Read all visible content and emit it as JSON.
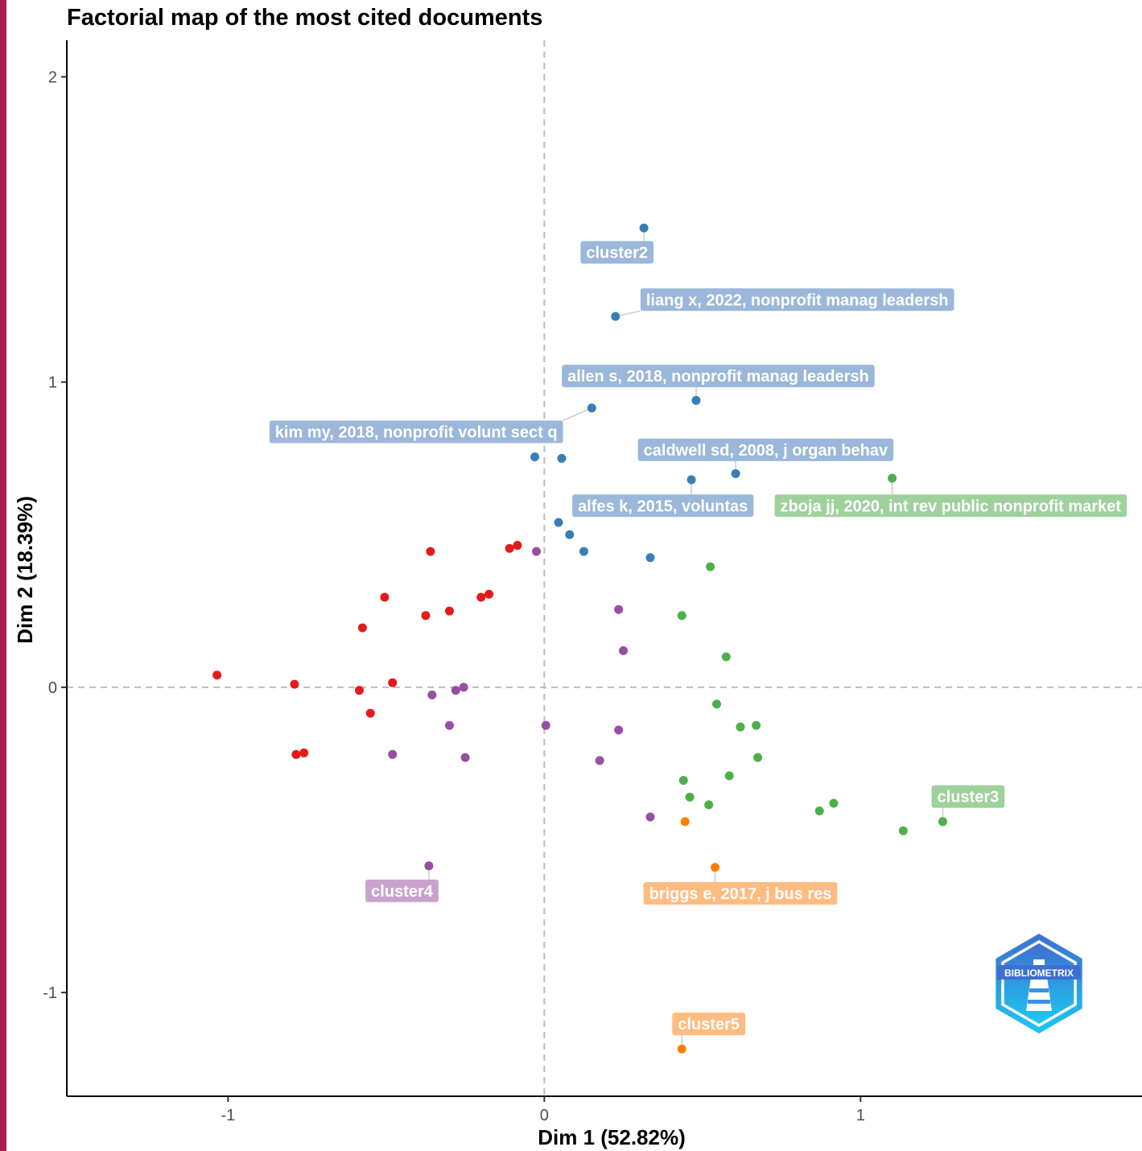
{
  "theme": {
    "accent_bar": "#a8224e",
    "cluster_colors": {
      "1": "#e41a1c",
      "2": "#377eb8",
      "3": "#4daf4a",
      "4": "#984ea3",
      "5": "#ff7f00"
    },
    "label_colors": {
      "1": "#f3a0a0",
      "2": "#9bb7d9",
      "3": "#9fd19d",
      "4": "#c9a3cd",
      "5": "#ffbb80"
    }
  },
  "logo": {
    "text": "BIBLIOMETRIX",
    "icon": "bibliometrix-lighthouse-icon"
  },
  "chart_data": {
    "type": "scatter",
    "title": "Factorial map of the most cited documents",
    "xlabel": "Dim 1 (52.82%)",
    "ylabel": "Dim 2 (18.39%)",
    "xlim": [
      -1.51,
      1.89
    ],
    "ylim": [
      -1.34,
      2.12
    ],
    "xticks": [
      -1,
      0,
      1
    ],
    "yticks": [
      -1,
      0,
      1,
      2
    ],
    "xtick_labels": [
      "-1",
      "0",
      "1"
    ],
    "ytick_labels": [
      "-1",
      "0",
      "1",
      "2"
    ],
    "reference_lines": {
      "x": 0,
      "y": 0,
      "style": "dashed"
    },
    "grid": false,
    "legend": "none",
    "series": [
      {
        "cluster": "1",
        "points": [
          [
            -1.035,
            0.04
          ],
          [
            -0.79,
            0.01
          ],
          [
            -0.785,
            -0.22
          ],
          [
            -0.76,
            -0.215
          ],
          [
            -0.585,
            -0.01
          ],
          [
            -0.575,
            0.195
          ],
          [
            -0.55,
            -0.085
          ],
          [
            -0.505,
            0.295
          ],
          [
            -0.48,
            0.015
          ],
          [
            -0.375,
            0.235
          ],
          [
            -0.36,
            0.445
          ],
          [
            -0.3,
            0.25
          ],
          [
            -0.2,
            0.295
          ],
          [
            -0.175,
            0.305
          ],
          [
            -0.11,
            0.455
          ],
          [
            -0.085,
            0.465
          ]
        ]
      },
      {
        "cluster": "2",
        "points": [
          [
            0.315,
            1.505
          ],
          [
            0.225,
            1.215
          ],
          [
            0.15,
            0.915
          ],
          [
            0.48,
            0.94
          ],
          [
            0.605,
            0.7
          ],
          [
            -0.03,
            0.755
          ],
          [
            0.055,
            0.75
          ],
          [
            0.465,
            0.68
          ],
          [
            0.045,
            0.54
          ],
          [
            0.08,
            0.5
          ],
          [
            0.125,
            0.445
          ],
          [
            0.335,
            0.425
          ]
        ]
      },
      {
        "cluster": "3",
        "points": [
          [
            1.1,
            0.685
          ],
          [
            0.525,
            0.395
          ],
          [
            0.435,
            0.235
          ],
          [
            0.575,
            0.1
          ],
          [
            0.545,
            -0.055
          ],
          [
            0.62,
            -0.13
          ],
          [
            0.67,
            -0.125
          ],
          [
            0.675,
            -0.23
          ],
          [
            0.585,
            -0.29
          ],
          [
            0.44,
            -0.305
          ],
          [
            0.46,
            -0.36
          ],
          [
            0.52,
            -0.385
          ],
          [
            0.87,
            -0.405
          ],
          [
            0.915,
            -0.38
          ],
          [
            1.135,
            -0.47
          ],
          [
            1.26,
            -0.44
          ]
        ]
      },
      {
        "cluster": "4",
        "points": [
          [
            -0.025,
            0.445
          ],
          [
            0.235,
            0.255
          ],
          [
            0.25,
            0.12
          ],
          [
            -0.355,
            -0.025
          ],
          [
            -0.28,
            -0.01
          ],
          [
            -0.255,
            0.0
          ],
          [
            -0.3,
            -0.125
          ],
          [
            -0.48,
            -0.22
          ],
          [
            -0.25,
            -0.23
          ],
          [
            0.005,
            -0.125
          ],
          [
            0.235,
            -0.14
          ],
          [
            0.175,
            -0.24
          ],
          [
            0.335,
            -0.425
          ],
          [
            -0.365,
            -0.585
          ]
        ]
      },
      {
        "cluster": "5",
        "points": [
          [
            0.445,
            -0.44
          ],
          [
            0.54,
            -0.59
          ],
          [
            0.435,
            -1.185
          ]
        ]
      }
    ],
    "annotations": [
      {
        "text": "cluster2",
        "cluster": "2",
        "at": [
          0.315,
          1.505
        ],
        "label_at": [
          0.23,
          1.425
        ]
      },
      {
        "text": "liang x, 2022, nonprofit manag leadersh",
        "cluster": "2",
        "at": [
          0.225,
          1.215
        ],
        "label_at": [
          0.8,
          1.27
        ]
      },
      {
        "text": "allen s, 2018, nonprofit manag leadersh",
        "cluster": "2",
        "at": [
          0.48,
          0.94
        ],
        "label_at": [
          0.55,
          1.02
        ]
      },
      {
        "text": "kim my, 2018, nonprofit volunt sect q",
        "cluster": "2",
        "at": [
          0.15,
          0.915
        ],
        "label_at": [
          -0.405,
          0.837
        ]
      },
      {
        "text": "caldwell sd, 2008, j organ behav",
        "cluster": "2",
        "at": [
          0.605,
          0.7
        ],
        "label_at": [
          0.7,
          0.778
        ]
      },
      {
        "text": "alfes k, 2015, voluntas",
        "cluster": "2",
        "at": [
          0.465,
          0.68
        ],
        "label_at": [
          0.375,
          0.595
        ]
      },
      {
        "text": "zboja jj, 2020, int rev public nonprofit market",
        "cluster": "3",
        "at": [
          1.1,
          0.685
        ],
        "label_at": [
          1.285,
          0.595
        ]
      },
      {
        "text": "cluster3",
        "cluster": "3",
        "at": [
          1.26,
          -0.44
        ],
        "label_at": [
          1.34,
          -0.358
        ]
      },
      {
        "text": "cluster4",
        "cluster": "4",
        "at": [
          -0.365,
          -0.585
        ],
        "label_at": [
          -0.45,
          -0.667
        ]
      },
      {
        "text": "briggs e, 2017, j bus res",
        "cluster": "5",
        "at": [
          0.54,
          -0.59
        ],
        "label_at": [
          0.62,
          -0.675
        ]
      },
      {
        "text": "cluster5",
        "cluster": "5",
        "at": [
          0.435,
          -1.185
        ],
        "label_at": [
          0.52,
          -1.103
        ]
      }
    ]
  }
}
